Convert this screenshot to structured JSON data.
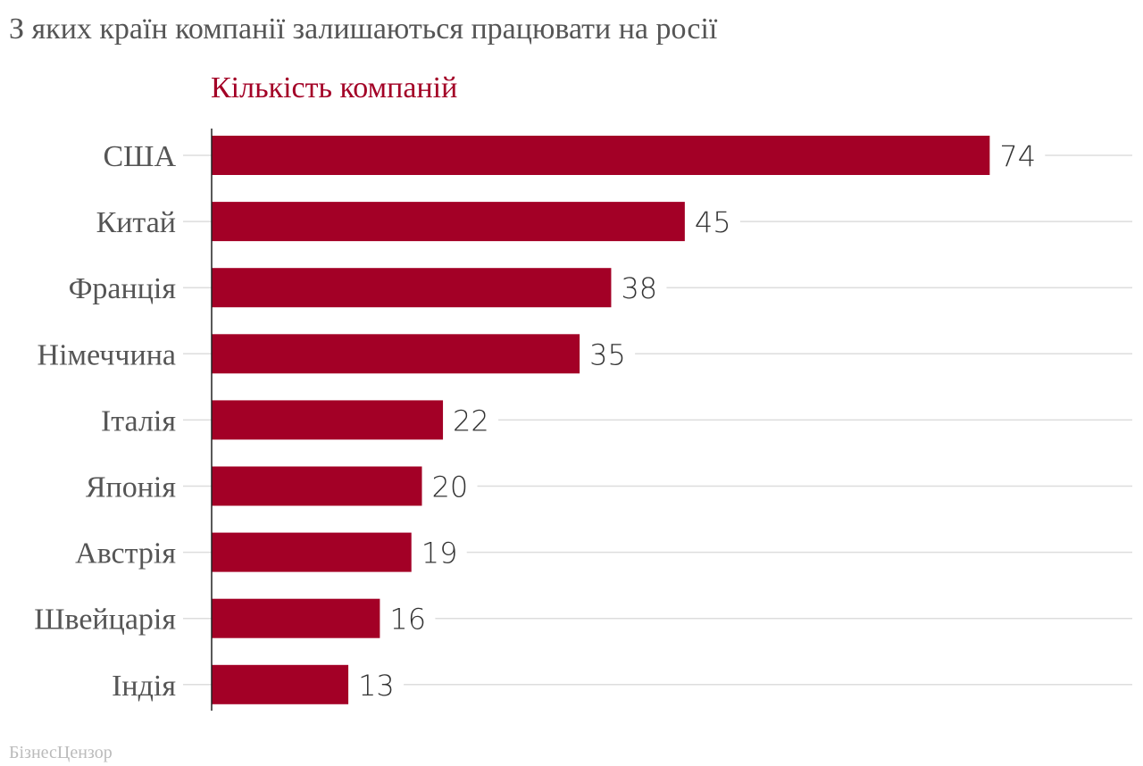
{
  "title": "З яких країн компанії залишаються працювати на росії",
  "source_label": "БізнесЦензор",
  "colors": {
    "bar": "#a30026",
    "subtitle": "#a30026",
    "gridline": "#dddddd",
    "axis": "#222222"
  },
  "chart_data": {
    "type": "bar",
    "orientation": "horizontal",
    "title": "З яких країн компанії залишаються працювати на росії",
    "subtitle": "Кількість компаній",
    "categories": [
      "США",
      "Китай",
      "Франція",
      "Німеччина",
      "Італія",
      "Японія",
      "Австрія",
      "Швейцарія",
      "Індія"
    ],
    "series": [
      {
        "values": [
          74,
          45,
          38,
          35,
          22,
          20,
          19,
          16,
          13
        ]
      }
    ],
    "xlim": [
      0,
      80
    ],
    "grid": true,
    "legend": "none",
    "data_labels": true
  }
}
